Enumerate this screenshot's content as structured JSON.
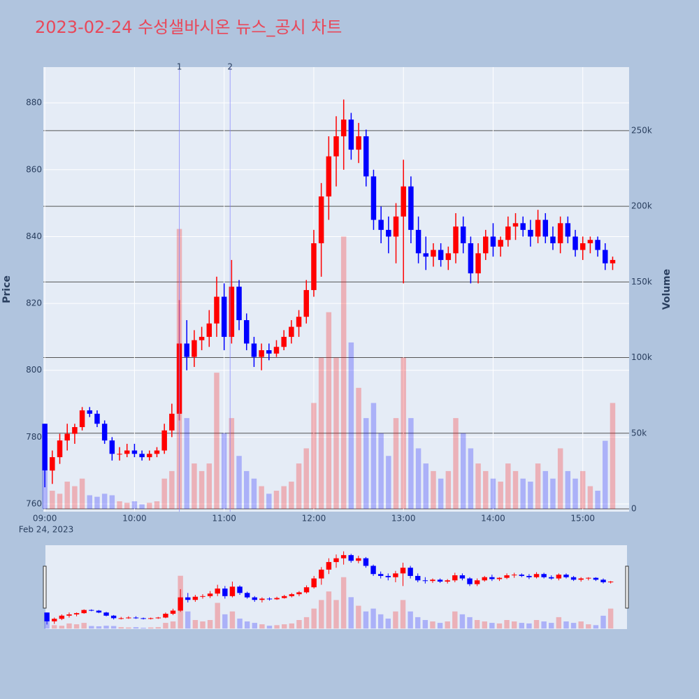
{
  "chart_data": {
    "type": "candlestick",
    "title": "2023-02-24 수성샐바시온 뉴스_공시 차트",
    "y_label": "Price",
    "y2_label": "Volume",
    "x_date_label": "Feb 24, 2023",
    "up_color": "#ff0000",
    "down_color": "#0000ff",
    "x": [
      "09:00",
      "09:05",
      "09:10",
      "09:15",
      "09:20",
      "09:25",
      "09:30",
      "09:35",
      "09:40",
      "09:45",
      "09:50",
      "09:55",
      "10:00",
      "10:05",
      "10:10",
      "10:15",
      "10:20",
      "10:25",
      "10:30",
      "10:35",
      "10:40",
      "10:45",
      "10:50",
      "10:55",
      "11:00",
      "11:05",
      "11:10",
      "11:15",
      "11:20",
      "11:25",
      "11:30",
      "11:35",
      "11:40",
      "11:45",
      "11:50",
      "11:55",
      "12:00",
      "12:05",
      "12:10",
      "12:15",
      "12:20",
      "12:25",
      "12:30",
      "12:35",
      "12:40",
      "12:45",
      "12:50",
      "12:55",
      "13:00",
      "13:05",
      "13:10",
      "13:15",
      "13:20",
      "13:25",
      "13:30",
      "13:35",
      "13:40",
      "13:45",
      "13:50",
      "13:55",
      "14:00",
      "14:05",
      "14:10",
      "14:15",
      "14:20",
      "14:25",
      "14:30",
      "14:35",
      "14:40",
      "14:45",
      "14:50",
      "14:55",
      "15:00",
      "15:05",
      "15:10",
      "15:15",
      "15:20"
    ],
    "open": [
      784,
      770,
      774,
      779,
      781,
      783,
      788,
      787,
      784,
      779,
      775,
      775,
      776,
      775,
      774,
      775,
      776,
      782,
      787,
      808,
      804,
      809,
      810,
      814,
      822,
      810,
      825,
      815,
      808,
      804,
      806,
      805,
      807,
      810,
      813,
      816,
      824,
      838,
      852,
      864,
      870,
      875,
      866,
      870,
      858,
      845,
      842,
      840,
      846,
      855,
      842,
      835,
      834,
      836,
      833,
      835,
      843,
      838,
      829,
      835,
      840,
      837,
      839,
      843,
      844,
      842,
      840,
      845,
      840,
      838,
      844,
      840,
      836,
      838,
      839,
      836,
      832
    ],
    "high": [
      784,
      776,
      781,
      784,
      784,
      789,
      789,
      788,
      785,
      780,
      777,
      778,
      778,
      776,
      776,
      777,
      784,
      790,
      821,
      815,
      812,
      813,
      818,
      828,
      826,
      833,
      827,
      817,
      810,
      808,
      808,
      809,
      812,
      815,
      818,
      827,
      842,
      856,
      870,
      876,
      881,
      877,
      874,
      872,
      860,
      849,
      846,
      850,
      863,
      858,
      846,
      840,
      838,
      838,
      837,
      847,
      846,
      840,
      838,
      842,
      844,
      840,
      846,
      847,
      846,
      845,
      848,
      847,
      843,
      846,
      846,
      842,
      840,
      840,
      840,
      838,
      834
    ],
    "low": [
      765,
      766,
      772,
      776,
      778,
      782,
      786,
      783,
      778,
      773,
      773,
      774,
      774,
      773,
      773,
      774,
      775,
      780,
      785,
      800,
      801,
      806,
      807,
      810,
      806,
      808,
      812,
      806,
      801,
      800,
      803,
      804,
      806,
      808,
      810,
      814,
      822,
      828,
      845,
      855,
      860,
      863,
      862,
      855,
      842,
      838,
      835,
      832,
      826,
      838,
      832,
      830,
      831,
      831,
      830,
      832,
      835,
      826,
      826,
      833,
      834,
      834,
      837,
      839,
      840,
      837,
      838,
      838,
      836,
      835,
      838,
      834,
      833,
      835,
      834,
      830,
      830
    ],
    "close": [
      770,
      774,
      779,
      781,
      783,
      788,
      787,
      784,
      779,
      775,
      775,
      776,
      775,
      774,
      775,
      776,
      782,
      787,
      808,
      804,
      809,
      810,
      814,
      822,
      810,
      825,
      815,
      808,
      804,
      806,
      805,
      807,
      810,
      813,
      816,
      824,
      838,
      852,
      864,
      870,
      875,
      866,
      870,
      858,
      845,
      842,
      840,
      846,
      855,
      842,
      835,
      834,
      836,
      833,
      835,
      843,
      838,
      829,
      835,
      840,
      837,
      839,
      843,
      844,
      842,
      840,
      845,
      840,
      838,
      844,
      840,
      836,
      838,
      839,
      836,
      832,
      833
    ],
    "volume": [
      25000,
      12000,
      10000,
      18000,
      15000,
      20000,
      9000,
      8000,
      10000,
      9000,
      5000,
      4000,
      5000,
      3000,
      4000,
      5000,
      20000,
      25000,
      185000,
      60000,
      30000,
      25000,
      30000,
      90000,
      50000,
      60000,
      35000,
      25000,
      20000,
      15000,
      10000,
      12000,
      15000,
      18000,
      30000,
      40000,
      70000,
      100000,
      130000,
      100000,
      180000,
      110000,
      80000,
      60000,
      70000,
      50000,
      35000,
      60000,
      100000,
      60000,
      40000,
      30000,
      25000,
      20000,
      25000,
      60000,
      50000,
      40000,
      30000,
      25000,
      20000,
      18000,
      30000,
      25000,
      20000,
      18000,
      30000,
      25000,
      20000,
      40000,
      25000,
      20000,
      25000,
      15000,
      12000,
      45000,
      70000
    ],
    "xlim": [
      "08:59",
      "15:31"
    ],
    "xticks": [
      "09:00",
      "10:00",
      "11:00",
      "12:00",
      "13:00",
      "14:00",
      "15:00"
    ],
    "ylim": [
      757.7,
      890.7
    ],
    "yticks": [
      760,
      780,
      800,
      820,
      840,
      860,
      880
    ],
    "y2lim": [
      -1850,
      292000
    ],
    "y2ticks": [
      0,
      {
        "value": 50000,
        "label": "50k"
      },
      {
        "value": 100000,
        "label": "100k"
      },
      {
        "value": 150000,
        "label": "150k"
      },
      {
        "value": 200000,
        "label": "200k"
      },
      {
        "value": 250000,
        "label": "250k"
      }
    ],
    "annotations": [
      {
        "x": "10:30",
        "label": "1"
      },
      {
        "x": "11:04",
        "label": "2"
      }
    ]
  }
}
